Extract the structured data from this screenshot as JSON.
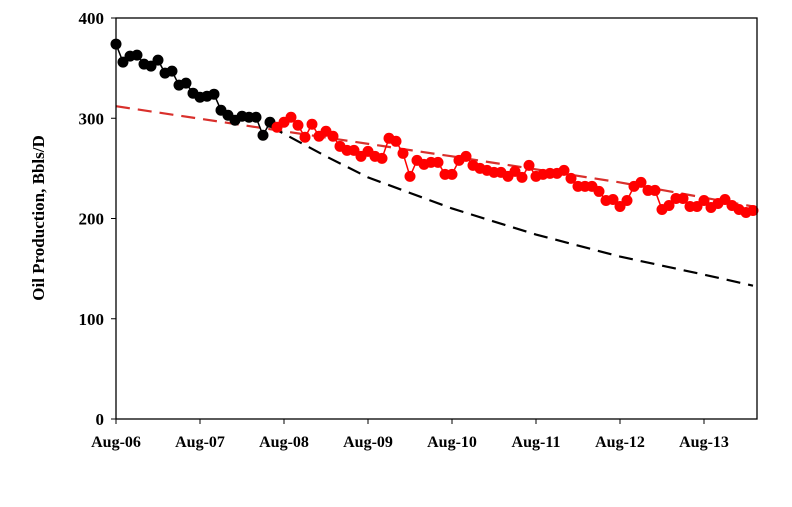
{
  "chart_data": {
    "type": "line",
    "title": "",
    "xlabel": "",
    "ylabel": "Oil Production, Bbls/D",
    "ylim": [
      0,
      400
    ],
    "yticks": [
      "0",
      "100",
      "200",
      "300",
      "400"
    ],
    "xlim": [
      "2006-08",
      "2014-03"
    ],
    "xticks": [
      {
        "date": "2006-08",
        "label": "Aug-06"
      },
      {
        "date": "2007-08",
        "label": "Aug-07"
      },
      {
        "date": "2008-08",
        "label": "Aug-08"
      },
      {
        "date": "2009-08",
        "label": "Aug-09"
      },
      {
        "date": "2010-08",
        "label": "Aug-10"
      },
      {
        "date": "2011-08",
        "label": "Aug-11"
      },
      {
        "date": "2012-08",
        "label": "Aug-12"
      },
      {
        "date": "2013-08",
        "label": "Aug-13"
      }
    ],
    "grid": false,
    "legend": "none",
    "series": [
      {
        "style": "markers-line",
        "color": "#000000",
        "start": "2006-08",
        "interval": "monthly",
        "values": [
          374,
          356,
          362,
          363,
          354,
          352,
          358,
          345,
          347,
          333,
          335,
          325,
          321,
          322,
          324,
          308,
          303,
          298,
          302,
          301,
          301,
          283,
          296
        ]
      },
      {
        "style": "markers-line",
        "color": "#ff0000",
        "start": "2008-07",
        "interval": "monthly",
        "values": [
          291,
          296,
          301,
          293,
          281,
          294,
          282,
          287,
          282,
          272,
          268,
          268,
          262,
          267,
          262,
          260,
          280,
          277,
          265,
          242,
          258,
          254,
          256,
          256,
          244,
          244,
          258,
          262,
          253,
          250,
          248,
          246,
          246,
          242,
          247,
          241,
          253,
          242,
          244,
          245,
          245,
          248,
          240,
          232,
          232,
          232,
          227,
          218,
          219,
          212,
          218,
          232,
          236,
          228,
          228,
          209,
          213,
          220,
          220,
          212,
          212,
          218,
          211,
          215,
          219,
          213,
          209,
          206,
          208
        ]
      },
      {
        "style": "dashed",
        "color": "#d9302c",
        "points": [
          [
            "2006-08",
            312
          ],
          [
            "2008-08",
            287
          ],
          [
            "2010-08",
            262
          ],
          [
            "2012-08",
            236
          ],
          [
            "2014-03",
            212
          ]
        ]
      },
      {
        "style": "dashed",
        "color": "#000000",
        "points": [
          [
            "2008-06",
            292
          ],
          [
            "2009-02",
            262
          ],
          [
            "2009-08",
            241
          ],
          [
            "2010-08",
            210
          ],
          [
            "2011-08",
            184
          ],
          [
            "2012-08",
            162
          ],
          [
            "2013-08",
            144
          ],
          [
            "2014-03",
            133
          ]
        ]
      }
    ]
  }
}
